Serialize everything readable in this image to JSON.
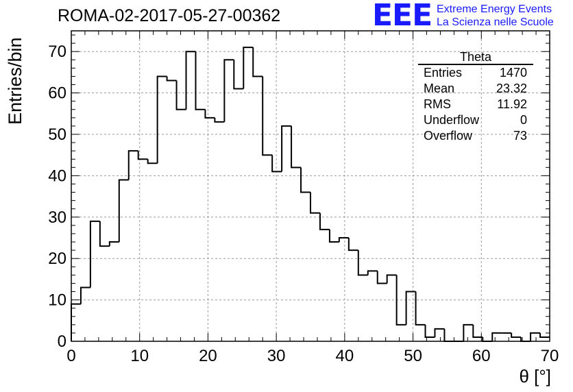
{
  "header": {
    "run_title": "ROMA-02-2017-05-27-00362",
    "logo_letters": "EEE",
    "logo_line1": "Extreme Energy Events",
    "logo_line2": "La Scienza nelle Scuole"
  },
  "stats_box": {
    "title": "Theta",
    "rows": [
      {
        "label": "Entries",
        "value": "1470"
      },
      {
        "label": "Mean",
        "value": "23.32"
      },
      {
        "label": "RMS",
        "value": "11.92"
      },
      {
        "label": "Underflow",
        "value": "0"
      },
      {
        "label": "Overflow",
        "value": "73"
      }
    ]
  },
  "chart_data": {
    "type": "bar",
    "histogram": "step",
    "title": "ROMA-02-2017-05-27-00362",
    "xlabel": "θ [°]",
    "ylabel": "Entries/bin",
    "xlim": [
      0,
      70
    ],
    "ylim": [
      0,
      75
    ],
    "bin_width": 1.4,
    "bin_edges_start": 0,
    "values": [
      9,
      13,
      29,
      23,
      24,
      39,
      46,
      44,
      43,
      64,
      63,
      56,
      70,
      56,
      54,
      53,
      68,
      61,
      71,
      64,
      45,
      41,
      52,
      42,
      36,
      31,
      27,
      24,
      25,
      22,
      16,
      17,
      14,
      16,
      4,
      12,
      4,
      1,
      3,
      0,
      0,
      4,
      1,
      0,
      2,
      2,
      1,
      0,
      2,
      1
    ],
    "x_ticks": [
      "0",
      "10",
      "20",
      "30",
      "40",
      "50",
      "60",
      "70"
    ],
    "y_ticks": [
      "0",
      "10",
      "20",
      "30",
      "40",
      "50",
      "60",
      "70"
    ],
    "grid": true,
    "line_color": "#000000"
  }
}
